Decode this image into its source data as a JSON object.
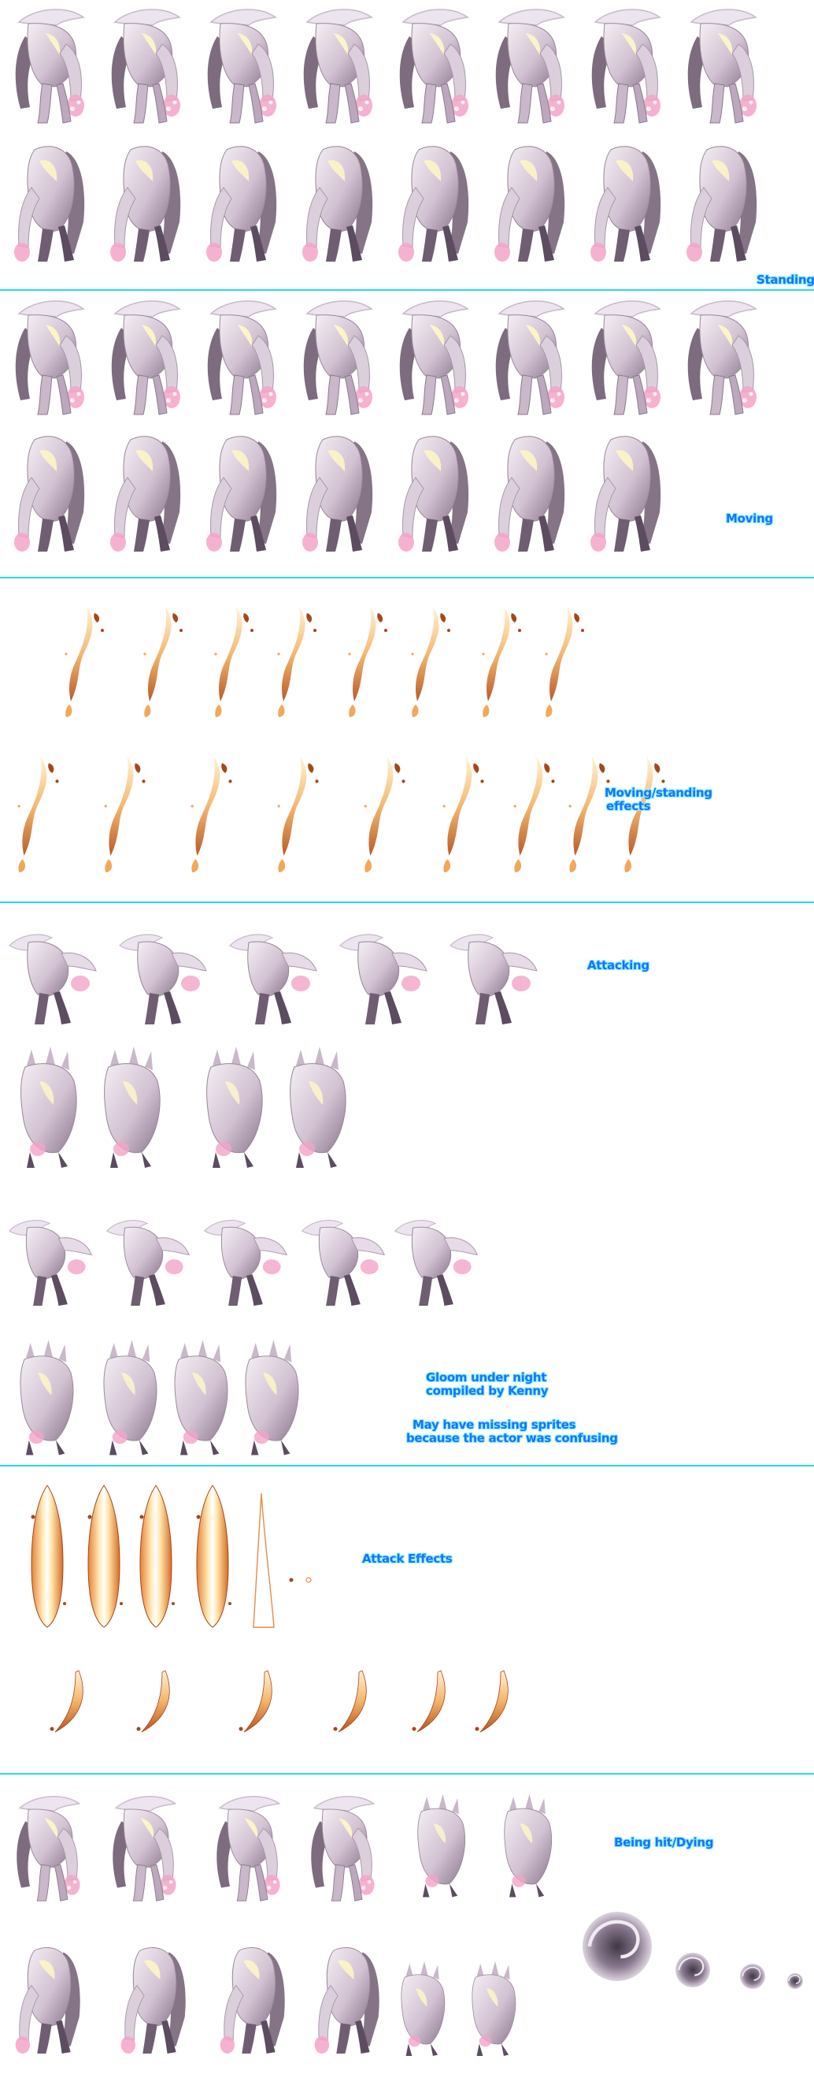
{
  "sheet": {
    "subject": "Gloom Under Night monster sprite sheet",
    "background": "#ffffff",
    "divider_color": "#22ddee",
    "label_color": "#1673ff",
    "label_outline": "#8df1ff"
  },
  "labels": {
    "standing": "Standing",
    "moving": "Moving",
    "effects_line1": "Moving/standing",
    "effects_line2": "effects",
    "attacking": "Attacking",
    "credit_line1": "Gloom under night",
    "credit_line2": "compiled by Kenny",
    "note_line1": "May have missing sprites",
    "note_line2": "because the actor was confusing",
    "attack_effects": "Attack Effects",
    "being_hit": "Being hit/Dying"
  },
  "sections": [
    {
      "name": "Standing",
      "frames": 16
    },
    {
      "name": "Moving",
      "frames": 15
    },
    {
      "name": "Moving/standing effects",
      "frames": 17
    },
    {
      "name": "Attacking",
      "frames": 18
    },
    {
      "name": "Attack Effects",
      "frames": 13
    },
    {
      "name": "Being hit/Dying",
      "frames": 15
    }
  ],
  "colors": {
    "body_light": "#ece4ee",
    "body_mid": "#c9b8c9",
    "body_dark": "#6e5c70",
    "highlight": "#fff7c8",
    "hand_pink": "#f3a4c8",
    "flame_light": "#fff1cf",
    "flame_mid": "#f2a85a",
    "flame_dark": "#a4481c",
    "swirl": "#4a3e52"
  }
}
